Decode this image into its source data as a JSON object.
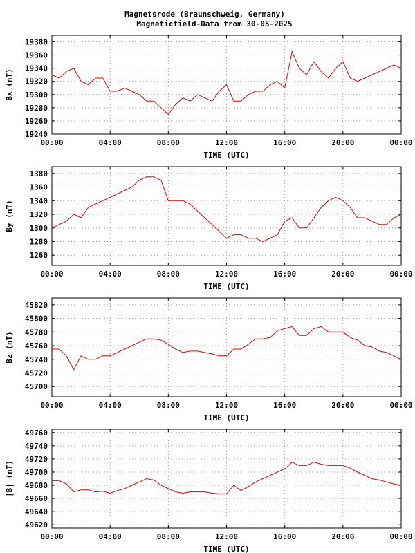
{
  "header": {
    "title_line1": "Magnetsrode (Braunschweig, Germany)",
    "title_line2": "Magneticfield-Data from 30-05-2025"
  },
  "colors": {
    "series": "#dd0000",
    "grid": "#a0a0a0"
  },
  "chart_data": [
    {
      "type": "line",
      "ylabel": "Bx (nT)",
      "xlabel": "TIME (UTC)",
      "x_ticks": [
        "00:00",
        "04:00",
        "08:00",
        "12:00",
        "16:00",
        "20:00",
        "00:00"
      ],
      "ylim": [
        19240,
        19390
      ],
      "y_ticks": [
        19240,
        19260,
        19280,
        19300,
        19320,
        19340,
        19360,
        19380
      ],
      "grid": true,
      "series": [
        {
          "x": [
            0,
            0.5,
            1,
            1.5,
            2,
            2.5,
            3,
            3.5,
            4,
            4.5,
            5,
            5.5,
            6,
            6.5,
            7,
            7.5,
            8,
            8.5,
            9,
            9.5,
            10,
            10.5,
            11,
            11.5,
            12,
            12.5,
            13,
            13.5,
            14,
            14.5,
            15,
            15.5,
            16,
            16.5,
            17,
            17.5,
            18,
            18.5,
            19,
            19.5,
            20,
            20.5,
            21,
            21.5,
            22,
            22.5,
            23,
            23.5,
            24
          ],
          "values": [
            19330,
            19325,
            19335,
            19340,
            19320,
            19315,
            19325,
            19325,
            19305,
            19305,
            19310,
            19305,
            19300,
            19290,
            19290,
            19280,
            19270,
            19285,
            19295,
            19290,
            19300,
            19295,
            19290,
            19305,
            19315,
            19290,
            19290,
            19300,
            19305,
            19305,
            19315,
            19320,
            19310,
            19365,
            19340,
            19330,
            19350,
            19335,
            19325,
            19340,
            19350,
            19325,
            19320,
            19325,
            19330,
            19335,
            19340,
            19345,
            19340
          ]
        }
      ]
    },
    {
      "type": "line",
      "ylabel": "By (nT)",
      "xlabel": "TIME (UTC)",
      "x_ticks": [
        "00:00",
        "04:00",
        "08:00",
        "12:00",
        "16:00",
        "20:00",
        "00:00"
      ],
      "ylim": [
        1245,
        1390
      ],
      "y_ticks": [
        1260,
        1280,
        1300,
        1320,
        1340,
        1360,
        1380
      ],
      "grid": true,
      "series": [
        {
          "x": [
            0,
            0.5,
            1,
            1.5,
            2,
            2.5,
            3,
            3.5,
            4,
            4.5,
            5,
            5.5,
            6,
            6.5,
            7,
            7.5,
            8,
            8.5,
            9,
            9.5,
            10,
            10.5,
            11,
            11.5,
            12,
            12.5,
            13,
            13.5,
            14,
            14.5,
            15,
            15.5,
            16,
            16.5,
            17,
            17.5,
            18,
            18.5,
            19,
            19.5,
            20,
            20.5,
            21,
            21.5,
            22,
            22.5,
            23,
            23.5,
            24
          ],
          "values": [
            1300,
            1305,
            1310,
            1320,
            1315,
            1330,
            1335,
            1340,
            1345,
            1350,
            1355,
            1360,
            1370,
            1375,
            1375,
            1370,
            1340,
            1340,
            1340,
            1335,
            1325,
            1315,
            1305,
            1295,
            1285,
            1290,
            1290,
            1285,
            1285,
            1280,
            1285,
            1290,
            1310,
            1315,
            1300,
            1300,
            1315,
            1330,
            1340,
            1345,
            1340,
            1330,
            1315,
            1315,
            1310,
            1305,
            1305,
            1315,
            1320
          ]
        }
      ]
    },
    {
      "type": "line",
      "ylabel": "Bz (nT)",
      "xlabel": "TIME (UTC)",
      "x_ticks": [
        "00:00",
        "04:00",
        "08:00",
        "12:00",
        "16:00",
        "20:00",
        "00:00"
      ],
      "ylim": [
        45685,
        45830
      ],
      "y_ticks": [
        45700,
        45720,
        45740,
        45760,
        45780,
        45800,
        45820
      ],
      "grid": true,
      "series": [
        {
          "x": [
            0,
            0.5,
            1,
            1.5,
            2,
            2.5,
            3,
            3.5,
            4,
            4.5,
            5,
            5.5,
            6,
            6.5,
            7,
            7.5,
            8,
            8.5,
            9,
            9.5,
            10,
            10.5,
            11,
            11.5,
            12,
            12.5,
            13,
            13.5,
            14,
            14.5,
            15,
            15.5,
            16,
            16.5,
            17,
            17.5,
            18,
            18.5,
            19,
            19.5,
            20,
            20.5,
            21,
            21.5,
            22,
            22.5,
            23,
            23.5,
            24
          ],
          "values": [
            45755,
            45755,
            45745,
            45725,
            45745,
            45740,
            45740,
            45745,
            45745,
            45750,
            45755,
            45760,
            45765,
            45770,
            45770,
            45768,
            45762,
            45755,
            45750,
            45752,
            45752,
            45750,
            45748,
            45745,
            45745,
            45755,
            45755,
            45762,
            45770,
            45770,
            45772,
            45782,
            45785,
            45788,
            45775,
            45775,
            45785,
            45788,
            45780,
            45780,
            45780,
            45772,
            45768,
            45760,
            45758,
            45752,
            45750,
            45745,
            45740
          ]
        }
      ]
    },
    {
      "type": "line",
      "ylabel": "|B| (nT)",
      "xlabel": "TIME (UTC)",
      "x_ticks": [
        "00:00",
        "04:00",
        "08:00",
        "12:00",
        "16:00",
        "20:00",
        "00:00"
      ],
      "ylim": [
        49615,
        49765
      ],
      "y_ticks": [
        49620,
        49640,
        49660,
        49680,
        49700,
        49720,
        49740,
        49760
      ],
      "grid": true,
      "series": [
        {
          "x": [
            0,
            0.5,
            1,
            1.5,
            2,
            2.5,
            3,
            3.5,
            4,
            4.5,
            5,
            5.5,
            6,
            6.5,
            7,
            7.5,
            8,
            8.5,
            9,
            9.5,
            10,
            10.5,
            11,
            11.5,
            12,
            12.5,
            13,
            13.5,
            14,
            14.5,
            15,
            15.5,
            16,
            16.5,
            17,
            17.5,
            18,
            18.5,
            19,
            19.5,
            20,
            20.5,
            21,
            21.5,
            22,
            22.5,
            23,
            23.5,
            24
          ],
          "values": [
            49687,
            49687,
            49682,
            49670,
            49673,
            49673,
            49670,
            49671,
            49668,
            49672,
            49675,
            49680,
            49685,
            49690,
            49688,
            49680,
            49675,
            49670,
            49668,
            49670,
            49670,
            49670,
            49668,
            49667,
            49667,
            49680,
            49672,
            49678,
            49685,
            49690,
            49695,
            49700,
            49705,
            49715,
            49710,
            49710,
            49715,
            49712,
            49710,
            49710,
            49710,
            49706,
            49700,
            49695,
            49690,
            49688,
            49685,
            49682,
            49680
          ]
        }
      ]
    }
  ]
}
